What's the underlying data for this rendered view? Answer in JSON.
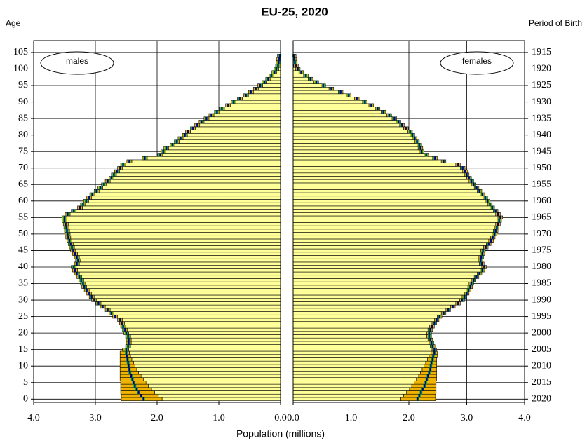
{
  "chart_data": {
    "type": "pyramid",
    "title": "EU-25, 2020",
    "ylabel": "Age",
    "y2label": "Period of Birth",
    "xlabel": "Population (millions)",
    "grid": true,
    "colors": {
      "bar": "#ffff99",
      "band": "#f0b400",
      "mid": "#00a651",
      "line": "#000080",
      "edge": "#000000"
    },
    "ylim": [
      -1,
      108.6
    ],
    "yticks": [
      0,
      5,
      10,
      15,
      20,
      25,
      30,
      35,
      40,
      45,
      50,
      55,
      60,
      65,
      70,
      75,
      80,
      85,
      90,
      95,
      100,
      105
    ],
    "y2lim": [
      2021,
      1911.4
    ],
    "y2ticks": [
      2020,
      2015,
      2010,
      2005,
      2000,
      1995,
      1990,
      1985,
      1980,
      1975,
      1970,
      1965,
      1960,
      1955,
      1950,
      1945,
      1940,
      1935,
      1930,
      1925,
      1920,
      1915
    ],
    "ages": [
      0,
      1,
      2,
      3,
      4,
      5,
      6,
      7,
      8,
      9,
      10,
      11,
      12,
      13,
      14,
      15,
      16,
      17,
      18,
      19,
      20,
      21,
      22,
      23,
      24,
      25,
      26,
      27,
      28,
      29,
      30,
      31,
      32,
      33,
      34,
      35,
      36,
      37,
      38,
      39,
      40,
      41,
      42,
      43,
      44,
      45,
      46,
      47,
      48,
      49,
      50,
      51,
      52,
      53,
      54,
      55,
      56,
      57,
      58,
      59,
      60,
      61,
      62,
      63,
      64,
      65,
      66,
      67,
      68,
      69,
      70,
      71,
      72,
      73,
      74,
      75,
      76,
      77,
      78,
      79,
      80,
      81,
      82,
      83,
      84,
      85,
      86,
      87,
      88,
      89,
      90,
      91,
      92,
      93,
      94,
      95,
      96,
      97,
      98,
      99,
      100,
      101,
      102,
      103,
      104
    ],
    "panels": [
      {
        "name": "males",
        "side": "left",
        "xlim": [
          4,
          0
        ],
        "xticks": [
          {
            "value": 4,
            "label": "4.0"
          },
          {
            "value": 3,
            "label": "3.0"
          },
          {
            "value": 2,
            "label": "2.0"
          },
          {
            "value": 1,
            "label": "1.0"
          },
          {
            "value": 0,
            "label": "0.0"
          }
        ],
        "low": [
          1.92,
          1.98,
          2.04,
          2.09,
          2.14,
          2.18,
          2.22,
          2.26,
          2.3,
          2.33,
          2.36,
          2.38,
          2.41,
          2.43,
          2.45,
          2.46,
          2.43,
          2.42,
          2.42,
          2.43,
          2.46,
          2.48,
          2.51,
          2.53,
          2.56,
          2.64,
          2.7,
          2.76,
          2.84,
          2.91,
          2.98,
          3.02,
          3.06,
          3.1,
          3.14,
          3.16,
          3.19,
          3.22,
          3.26,
          3.29,
          3.31,
          3.26,
          3.24,
          3.26,
          3.29,
          3.32,
          3.34,
          3.36,
          3.38,
          3.4,
          3.41,
          3.42,
          3.43,
          3.44,
          3.46,
          3.46,
          3.41,
          3.31,
          3.21,
          3.16,
          3.11,
          3.06,
          3.01,
          2.94,
          2.88,
          2.82,
          2.76,
          2.7,
          2.66,
          2.61,
          2.56,
          2.51,
          2.41,
          2.16,
          1.91,
          1.86,
          1.81,
          1.71,
          1.64,
          1.58,
          1.51,
          1.46,
          1.38,
          1.31,
          1.24,
          1.16,
          1.08,
          0.99,
          0.91,
          0.81,
          0.72,
          0.62,
          0.52,
          0.44,
          0.36,
          0.29,
          0.22,
          0.16,
          0.11,
          0.06,
          0.03,
          0,
          0,
          0,
          0
        ],
        "values": [
          2.22,
          2.26,
          2.3,
          2.33,
          2.36,
          2.38,
          2.4,
          2.42,
          2.44,
          2.45,
          2.46,
          2.47,
          2.48,
          2.49,
          2.5,
          2.5,
          2.47,
          2.46,
          2.46,
          2.47,
          2.5,
          2.52,
          2.55,
          2.57,
          2.6,
          2.68,
          2.74,
          2.8,
          2.88,
          2.95,
          3.02,
          3.06,
          3.1,
          3.14,
          3.18,
          3.2,
          3.23,
          3.26,
          3.3,
          3.33,
          3.35,
          3.3,
          3.28,
          3.3,
          3.33,
          3.36,
          3.38,
          3.4,
          3.42,
          3.44,
          3.45,
          3.46,
          3.47,
          3.48,
          3.5,
          3.5,
          3.45,
          3.35,
          3.25,
          3.2,
          3.15,
          3.1,
          3.05,
          2.98,
          2.92,
          2.86,
          2.8,
          2.74,
          2.7,
          2.65,
          2.6,
          2.55,
          2.45,
          2.2,
          1.95,
          1.9,
          1.85,
          1.75,
          1.68,
          1.62,
          1.55,
          1.5,
          1.42,
          1.35,
          1.28,
          1.2,
          1.12,
          1.03,
          0.95,
          0.85,
          0.76,
          0.66,
          0.56,
          0.48,
          0.4,
          0.33,
          0.26,
          0.2,
          0.15,
          0.1,
          0.07,
          0.04,
          0.03,
          0.02,
          0.01
        ],
        "high": [
          2.58,
          2.58,
          2.59,
          2.59,
          2.59,
          2.59,
          2.6,
          2.6,
          2.6,
          2.6,
          2.6,
          2.6,
          2.6,
          2.6,
          2.6,
          2.56,
          2.51,
          2.5,
          2.5,
          2.51,
          2.54,
          2.56,
          2.59,
          2.61,
          2.64,
          2.72,
          2.78,
          2.84,
          2.92,
          2.99,
          3.06,
          3.1,
          3.14,
          3.18,
          3.22,
          3.24,
          3.27,
          3.3,
          3.34,
          3.37,
          3.39,
          3.34,
          3.32,
          3.34,
          3.37,
          3.4,
          3.42,
          3.44,
          3.46,
          3.48,
          3.49,
          3.5,
          3.51,
          3.52,
          3.54,
          3.54,
          3.49,
          3.39,
          3.29,
          3.24,
          3.19,
          3.14,
          3.09,
          3.02,
          2.96,
          2.9,
          2.84,
          2.78,
          2.74,
          2.69,
          2.64,
          2.59,
          2.49,
          2.24,
          1.99,
          1.94,
          1.89,
          1.79,
          1.72,
          1.66,
          1.59,
          1.54,
          1.46,
          1.39,
          1.32,
          1.24,
          1.16,
          1.07,
          0.99,
          0.89,
          0.8,
          0.7,
          0.6,
          0.52,
          0.44,
          0.37,
          0.3,
          0.24,
          0.19,
          0.14,
          0.11,
          0.08,
          0.07,
          0.06,
          0.05
        ]
      },
      {
        "name": "females",
        "side": "right",
        "xlim": [
          0,
          4
        ],
        "xticks": [
          {
            "value": 0,
            "label": "0.0"
          },
          {
            "value": 1,
            "label": "1.0"
          },
          {
            "value": 2,
            "label": "2.0"
          },
          {
            "value": 3,
            "label": "3.0"
          },
          {
            "value": 4,
            "label": "4.0"
          }
        ],
        "low": [
          1.86,
          1.91,
          1.96,
          2.01,
          2.05,
          2.09,
          2.13,
          2.17,
          2.2,
          2.23,
          2.26,
          2.29,
          2.32,
          2.35,
          2.38,
          2.4,
          2.37,
          2.35,
          2.33,
          2.31,
          2.31,
          2.33,
          2.36,
          2.4,
          2.44,
          2.49,
          2.56,
          2.64,
          2.72,
          2.81,
          2.88,
          2.92,
          2.96,
          2.99,
          3.02,
          3.04,
          3.08,
          3.13,
          3.18,
          3.23,
          3.26,
          3.22,
          3.2,
          3.21,
          3.23,
          3.24,
          3.29,
          3.34,
          3.38,
          3.41,
          3.44,
          3.46,
          3.48,
          3.5,
          3.52,
          3.54,
          3.5,
          3.46,
          3.4,
          3.36,
          3.32,
          3.28,
          3.23,
          3.18,
          3.13,
          3.08,
          3.04,
          3.0,
          2.96,
          2.93,
          2.89,
          2.81,
          2.56,
          2.41,
          2.26,
          2.18,
          2.16,
          2.14,
          2.1,
          2.06,
          2.02,
          1.98,
          1.91,
          1.84,
          1.78,
          1.71,
          1.62,
          1.52,
          1.42,
          1.31,
          1.2,
          1.06,
          0.92,
          0.78,
          0.62,
          0.48,
          0.36,
          0.26,
          0.18,
          0.1,
          0.04,
          0.01,
          0,
          0,
          0
        ],
        "values": [
          2.15,
          2.18,
          2.21,
          2.24,
          2.27,
          2.29,
          2.31,
          2.33,
          2.35,
          2.37,
          2.38,
          2.39,
          2.41,
          2.42,
          2.44,
          2.44,
          2.41,
          2.39,
          2.37,
          2.35,
          2.35,
          2.37,
          2.4,
          2.44,
          2.48,
          2.53,
          2.6,
          2.68,
          2.76,
          2.85,
          2.92,
          2.96,
          3.0,
          3.03,
          3.06,
          3.08,
          3.12,
          3.17,
          3.22,
          3.27,
          3.3,
          3.26,
          3.24,
          3.25,
          3.27,
          3.28,
          3.33,
          3.38,
          3.42,
          3.45,
          3.48,
          3.5,
          3.52,
          3.54,
          3.56,
          3.58,
          3.54,
          3.5,
          3.44,
          3.4,
          3.36,
          3.32,
          3.27,
          3.22,
          3.17,
          3.12,
          3.08,
          3.04,
          3.0,
          2.97,
          2.93,
          2.85,
          2.6,
          2.45,
          2.3,
          2.22,
          2.2,
          2.18,
          2.14,
          2.1,
          2.06,
          2.02,
          1.95,
          1.88,
          1.82,
          1.75,
          1.66,
          1.56,
          1.46,
          1.35,
          1.24,
          1.1,
          0.96,
          0.82,
          0.66,
          0.52,
          0.4,
          0.3,
          0.22,
          0.14,
          0.08,
          0.05,
          0.03,
          0.02,
          0.01
        ],
        "high": [
          2.46,
          2.46,
          2.47,
          2.47,
          2.47,
          2.47,
          2.48,
          2.48,
          2.48,
          2.48,
          2.48,
          2.48,
          2.48,
          2.49,
          2.49,
          2.48,
          2.45,
          2.43,
          2.41,
          2.39,
          2.39,
          2.41,
          2.44,
          2.48,
          2.52,
          2.57,
          2.64,
          2.72,
          2.8,
          2.89,
          2.96,
          3.0,
          3.04,
          3.07,
          3.1,
          3.12,
          3.16,
          3.21,
          3.26,
          3.31,
          3.34,
          3.3,
          3.28,
          3.29,
          3.31,
          3.32,
          3.37,
          3.42,
          3.46,
          3.49,
          3.52,
          3.54,
          3.56,
          3.58,
          3.6,
          3.62,
          3.58,
          3.54,
          3.48,
          3.44,
          3.4,
          3.36,
          3.31,
          3.26,
          3.21,
          3.16,
          3.12,
          3.08,
          3.04,
          3.01,
          2.97,
          2.89,
          2.64,
          2.49,
          2.34,
          2.26,
          2.24,
          2.22,
          2.18,
          2.14,
          2.1,
          2.06,
          1.99,
          1.92,
          1.86,
          1.79,
          1.7,
          1.6,
          1.5,
          1.39,
          1.28,
          1.14,
          1.0,
          0.86,
          0.7,
          0.56,
          0.44,
          0.34,
          0.26,
          0.18,
          0.12,
          0.09,
          0.07,
          0.06,
          0.05
        ]
      }
    ]
  }
}
